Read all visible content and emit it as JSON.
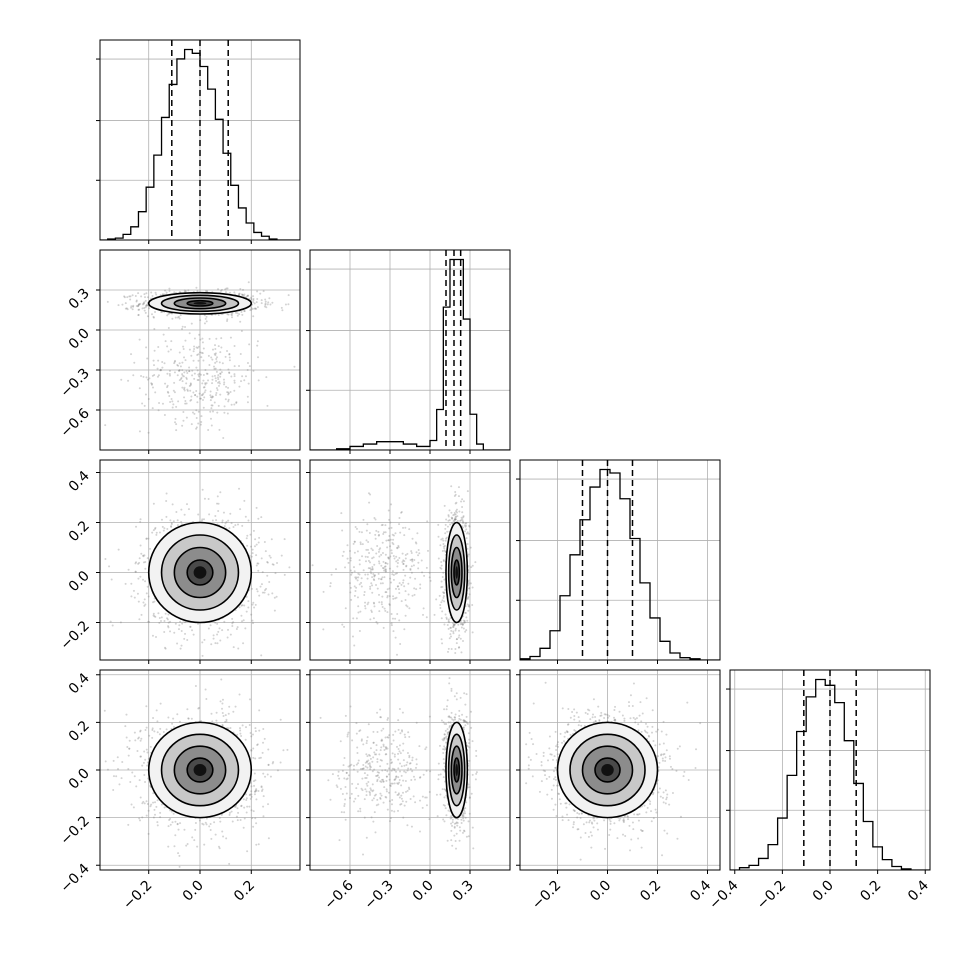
{
  "chart_data": {
    "type": "corner",
    "title": "",
    "parameters": [
      {
        "label": "",
        "range": [
          -0.39,
          0.39
        ],
        "ticks": [
          -0.2,
          0.0,
          0.2
        ],
        "tick_labels": [
          "−0.2",
          "0.0",
          "0.2"
        ],
        "quantiles": [
          -0.11,
          0.0,
          0.11
        ]
      },
      {
        "label": "",
        "range": [
          -0.9,
          0.6
        ],
        "ticks": [
          -0.6,
          -0.3,
          0.0,
          0.3
        ],
        "tick_labels": [
          "−0.6",
          "−0.3",
          "0.0",
          "0.3"
        ],
        "quantiles": [
          0.12,
          0.18,
          0.23
        ]
      },
      {
        "label": "",
        "range": [
          -0.35,
          0.45
        ],
        "ticks": [
          -0.2,
          0.0,
          0.2,
          0.4
        ],
        "tick_labels": [
          "−0.2",
          "0.0",
          "0.2",
          "0.4"
        ],
        "quantiles": [
          -0.1,
          0.0,
          0.1
        ]
      },
      {
        "label": "",
        "range": [
          -0.42,
          0.42
        ],
        "ticks": [
          -0.4,
          -0.2,
          0.0,
          0.2,
          0.4
        ],
        "tick_labels": [
          "−0.4",
          "−0.2",
          "0.0",
          "0.2",
          "0.4"
        ],
        "quantiles": [
          -0.11,
          0.0,
          0.11
        ]
      }
    ],
    "histograms": [
      {
        "bins": [
          -0.39,
          -0.36,
          -0.33,
          -0.3,
          -0.27,
          -0.24,
          -0.21,
          -0.18,
          -0.15,
          -0.12,
          -0.09,
          -0.06,
          -0.03,
          0.0,
          0.03,
          0.06,
          0.09,
          0.12,
          0.15,
          0.18,
          0.21,
          0.24,
          0.27,
          0.3,
          0.33,
          0.36,
          0.39
        ],
        "counts": [
          0,
          1,
          2,
          6,
          14,
          30,
          56,
          90,
          130,
          165,
          192,
          202,
          198,
          184,
          160,
          128,
          92,
          58,
          34,
          18,
          8,
          4,
          1,
          0,
          0,
          0
        ]
      },
      {
        "bins": [
          -0.9,
          -0.8,
          -0.7,
          -0.6,
          -0.5,
          -0.4,
          -0.3,
          -0.2,
          -0.1,
          0.0,
          0.05,
          0.1,
          0.15,
          0.2,
          0.25,
          0.3,
          0.35,
          0.4,
          0.45,
          0.5,
          0.55,
          0.6
        ],
        "counts": [
          0,
          0,
          1,
          3,
          5,
          7,
          7,
          5,
          3,
          8,
          34,
          120,
          160,
          160,
          110,
          30,
          5,
          0,
          0,
          0,
          0
        ]
      },
      {
        "bins": [
          -0.35,
          -0.31,
          -0.27,
          -0.23,
          -0.19,
          -0.15,
          -0.11,
          -0.07,
          -0.03,
          0.01,
          0.05,
          0.09,
          0.13,
          0.17,
          0.21,
          0.25,
          0.29,
          0.33,
          0.37,
          0.41,
          0.45
        ],
        "counts": [
          1,
          3,
          10,
          25,
          55,
          90,
          120,
          148,
          163,
          160,
          138,
          104,
          66,
          36,
          16,
          6,
          2,
          1,
          0,
          0
        ]
      },
      {
        "bins": [
          -0.42,
          -0.38,
          -0.34,
          -0.3,
          -0.26,
          -0.22,
          -0.18,
          -0.14,
          -0.1,
          -0.06,
          -0.02,
          0.02,
          0.06,
          0.1,
          0.14,
          0.18,
          0.22,
          0.26,
          0.3,
          0.34,
          0.38,
          0.42
        ],
        "counts": [
          0,
          2,
          4,
          10,
          22,
          45,
          82,
          120,
          150,
          165,
          160,
          145,
          112,
          75,
          42,
          20,
          9,
          3,
          1,
          0,
          0
        ]
      }
    ],
    "pairs": [
      {
        "x": 0,
        "y": 1,
        "components": [
          {
            "mx": 0.0,
            "my": 0.2,
            "sx": 0.1,
            "sy": 0.04,
            "w": 0.75
          },
          {
            "mx": 0.0,
            "my": -0.35,
            "sx": 0.1,
            "sy": 0.15,
            "w": 0.25
          }
        ]
      },
      {
        "x": 0,
        "y": 2,
        "components": [
          {
            "mx": 0.0,
            "my": 0.0,
            "sx": 0.1,
            "sy": 0.1,
            "w": 1.0
          }
        ]
      },
      {
        "x": 1,
        "y": 2,
        "components": [
          {
            "mx": 0.2,
            "my": 0.0,
            "sx": 0.04,
            "sy": 0.1,
            "w": 0.75
          },
          {
            "mx": -0.35,
            "my": 0.0,
            "sx": 0.15,
            "sy": 0.1,
            "w": 0.25
          }
        ]
      },
      {
        "x": 0,
        "y": 3,
        "components": [
          {
            "mx": 0.0,
            "my": 0.0,
            "sx": 0.1,
            "sy": 0.1,
            "w": 1.0
          }
        ]
      },
      {
        "x": 1,
        "y": 3,
        "components": [
          {
            "mx": 0.2,
            "my": 0.0,
            "sx": 0.04,
            "sy": 0.1,
            "w": 0.75
          },
          {
            "mx": -0.35,
            "my": 0.0,
            "sx": 0.15,
            "sy": 0.1,
            "w": 0.25
          }
        ]
      },
      {
        "x": 2,
        "y": 3,
        "components": [
          {
            "mx": 0.0,
            "my": 0.0,
            "sx": 0.1,
            "sy": 0.1,
            "w": 1.0
          }
        ]
      }
    ],
    "contour_levels_sigma": [
      0.5,
      1.0,
      1.5,
      2.0
    ],
    "grid": true,
    "colors": {
      "hist": "#000000",
      "points": "#808080",
      "contour": "#000000",
      "grid": "#b0b0b0"
    }
  }
}
